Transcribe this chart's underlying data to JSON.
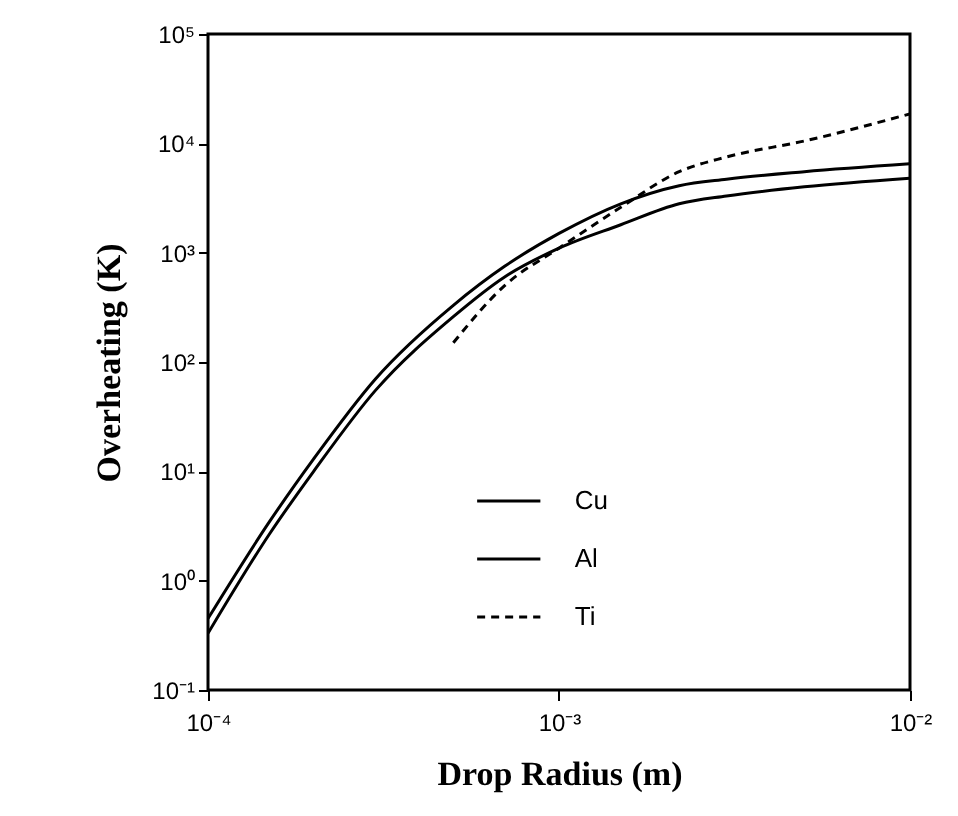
{
  "chart_data": {
    "type": "line",
    "xlabel": "Drop Radius (m)",
    "ylabel": "Overheating (K)",
    "log": "xy",
    "grid": false,
    "legend": "bottom",
    "xlim": [
      0.0001,
      0.01
    ],
    "xticks": [
      {
        "value": 0.0001,
        "label": "10⁻⁴"
      },
      {
        "value": 0.001,
        "label": "10⁻³"
      },
      {
        "value": 0.01,
        "label": "10⁻²"
      }
    ],
    "ylim": [
      0.1,
      100000
    ],
    "yticks": [
      {
        "value": 0.1,
        "label": "10⁻¹"
      },
      {
        "value": 1,
        "label": "10⁰"
      },
      {
        "value": 10,
        "label": "10¹"
      },
      {
        "value": 100,
        "label": "10²"
      },
      {
        "value": 1000,
        "label": "10³"
      },
      {
        "value": 10000,
        "label": "10⁴"
      },
      {
        "value": 100000,
        "label": "10⁵"
      }
    ],
    "x": [
      0.0001,
      0.00015,
      0.0002,
      0.0003,
      0.0005,
      0.0007,
      0.001,
      0.0015,
      0.0022,
      0.003,
      0.005,
      0.01
    ],
    "series": [
      {
        "name": "Cu",
        "color": "#000000",
        "line_style": "solid",
        "values": [
          0.45,
          3.5,
          13,
          70,
          330,
          750,
          1500,
          2800,
          4100,
          4700,
          5500,
          6500
        ]
      },
      {
        "name": "Al",
        "color": "#000000",
        "line_style": "solid",
        "values": [
          0.33,
          2.7,
          10,
          55,
          260,
          600,
          1100,
          1800,
          2800,
          3300,
          4000,
          4800
        ]
      },
      {
        "name": "Ti",
        "color": "#000000",
        "line_style": "dashed",
        "x": [
          0.0005,
          0.0007,
          0.001,
          0.0015,
          0.0022,
          0.003,
          0.005,
          0.01
        ],
        "values": [
          150,
          500,
          1100,
          2600,
          5500,
          7500,
          10500,
          18600
        ]
      }
    ]
  }
}
